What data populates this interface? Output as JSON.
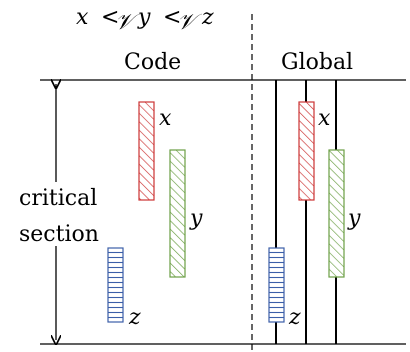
{
  "diagram": {
    "ordering": {
      "var_a": "x",
      "rel_1": "<",
      "sub_1": "𝒱",
      "var_b": "y",
      "rel_2": "<",
      "sub_2": "𝒱",
      "var_c": "z"
    },
    "panels": {
      "left_title": "Code",
      "right_title": "Global"
    },
    "left_label": {
      "line1": "critical",
      "line2": "section"
    },
    "code_bars": [
      {
        "name": "x",
        "color": "#cc3333",
        "pattern": "diagonal"
      },
      {
        "name": "y",
        "color": "#6a9e43",
        "pattern": "diagonal"
      },
      {
        "name": "z",
        "color": "#3b5ea8",
        "pattern": "horizontal"
      }
    ],
    "global_bars": [
      {
        "name": "x",
        "color": "#cc3333",
        "pattern": "diagonal"
      },
      {
        "name": "y",
        "color": "#6a9e43",
        "pattern": "diagonal"
      },
      {
        "name": "z",
        "color": "#3b5ea8",
        "pattern": "horizontal"
      }
    ]
  }
}
